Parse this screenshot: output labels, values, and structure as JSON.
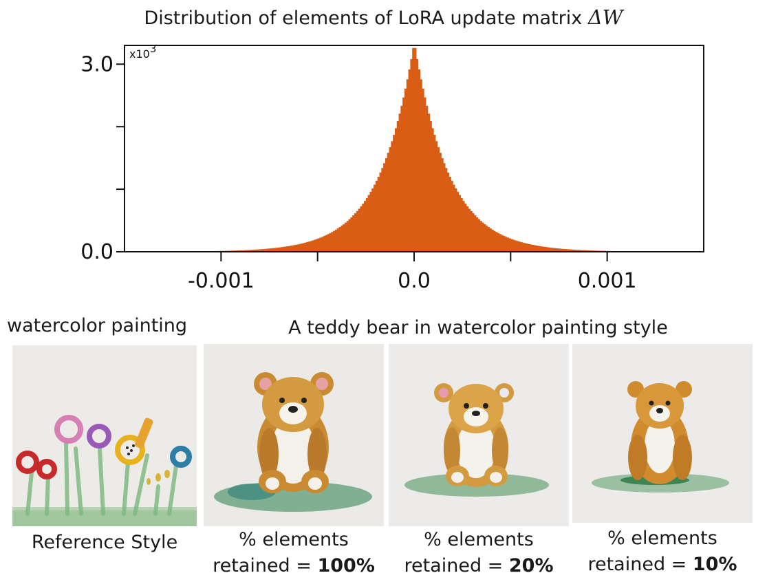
{
  "chart_data": {
    "type": "bar",
    "title": "Distribution of elements of LoRA update matrix",
    "title_math": "ΔW",
    "y_multiplier": "x10",
    "y_multiplier_exp": "3",
    "xlabel": "",
    "ylabel": "",
    "xlim": [
      -0.0015,
      0.0015
    ],
    "ylim": [
      0,
      3.3
    ],
    "x_ticks": [
      -0.001,
      -0.0005,
      0.0,
      0.0005,
      0.001
    ],
    "x_tick_labels": [
      "-0.001",
      "",
      "0.0",
      "",
      "0.001"
    ],
    "y_ticks": [
      0.0,
      1.0,
      2.0,
      3.0
    ],
    "y_tick_labels": [
      "0.0",
      "",
      "",
      "3.0"
    ],
    "bar_color": "#d95d15",
    "distribution": "Laplace-like, centered at 0, peak ~3.35 x10^3, scale ~0.00018",
    "peak": 3.35,
    "scale": 0.00018
  },
  "bottom": {
    "reference_prompt": "watercolor painting",
    "generation_prompt": "A teddy bear in watercolor painting style",
    "reference_caption": "Reference Style",
    "results": [
      {
        "line1": "% elements",
        "line2_prefix": "retained = ",
        "value": "100%"
      },
      {
        "line1": "% elements",
        "line2_prefix": "retained = ",
        "value": "20%"
      },
      {
        "line1": "% elements",
        "line2_prefix": "retained = ",
        "value": "10%"
      }
    ]
  }
}
